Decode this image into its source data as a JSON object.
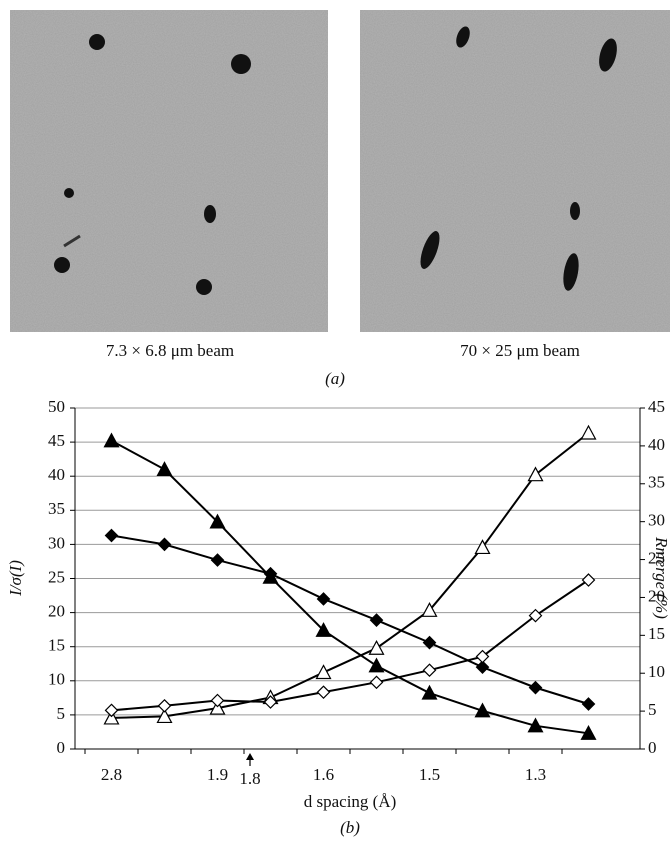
{
  "panel_a": {
    "captions": [
      "7.3 × 6.8 μm beam",
      "70 × 25 μm beam"
    ],
    "label": "(a)"
  },
  "chart_data": {
    "type": "line",
    "x_label": "d spacing (Å)",
    "y_label": "I/σ(I)",
    "y2_label": "Rmerge (%)",
    "panel_label": "(b)",
    "categories": [
      "2.8",
      null,
      "1.9",
      null,
      "1.6",
      null,
      "1.5",
      null,
      "1.3",
      null
    ],
    "annotation": "1.8",
    "series": [
      {
        "color": "#000000",
        "marker": "triangle",
        "filled": true,
        "values": [
          45.2,
          41,
          33.3,
          25.2,
          17.4,
          12.2,
          8.2,
          5.6,
          3.4,
          2.3
        ]
      },
      {
        "color": "#000000",
        "marker": "diamond",
        "filled": true,
        "values": [
          31.3,
          30,
          27.7,
          25.7,
          22,
          18.9,
          15.6,
          12,
          9,
          6.6
        ]
      },
      {
        "color": "#000000",
        "marker": "triangle",
        "filled": false,
        "axis": "y2",
        "values": [
          4.1,
          4.3,
          5.4,
          6.8,
          10.1,
          13.3,
          18.3,
          26.6,
          36.2,
          41.7
        ]
      },
      {
        "color": "#000000",
        "marker": "diamond",
        "filled": false,
        "axis": "y2",
        "values": [
          5.1,
          5.7,
          6.4,
          6.2,
          7.5,
          8.8,
          10.4,
          12.2,
          17.6,
          22.3
        ]
      }
    ],
    "ylim": [
      0,
      50
    ],
    "yticks": [
      0,
      5,
      10,
      15,
      20,
      25,
      30,
      35,
      40,
      45,
      50
    ],
    "y2lim": [
      0,
      45
    ],
    "y2ticks": [
      0,
      5,
      10,
      15,
      20,
      25,
      30,
      35,
      40,
      45
    ],
    "grid": true
  }
}
